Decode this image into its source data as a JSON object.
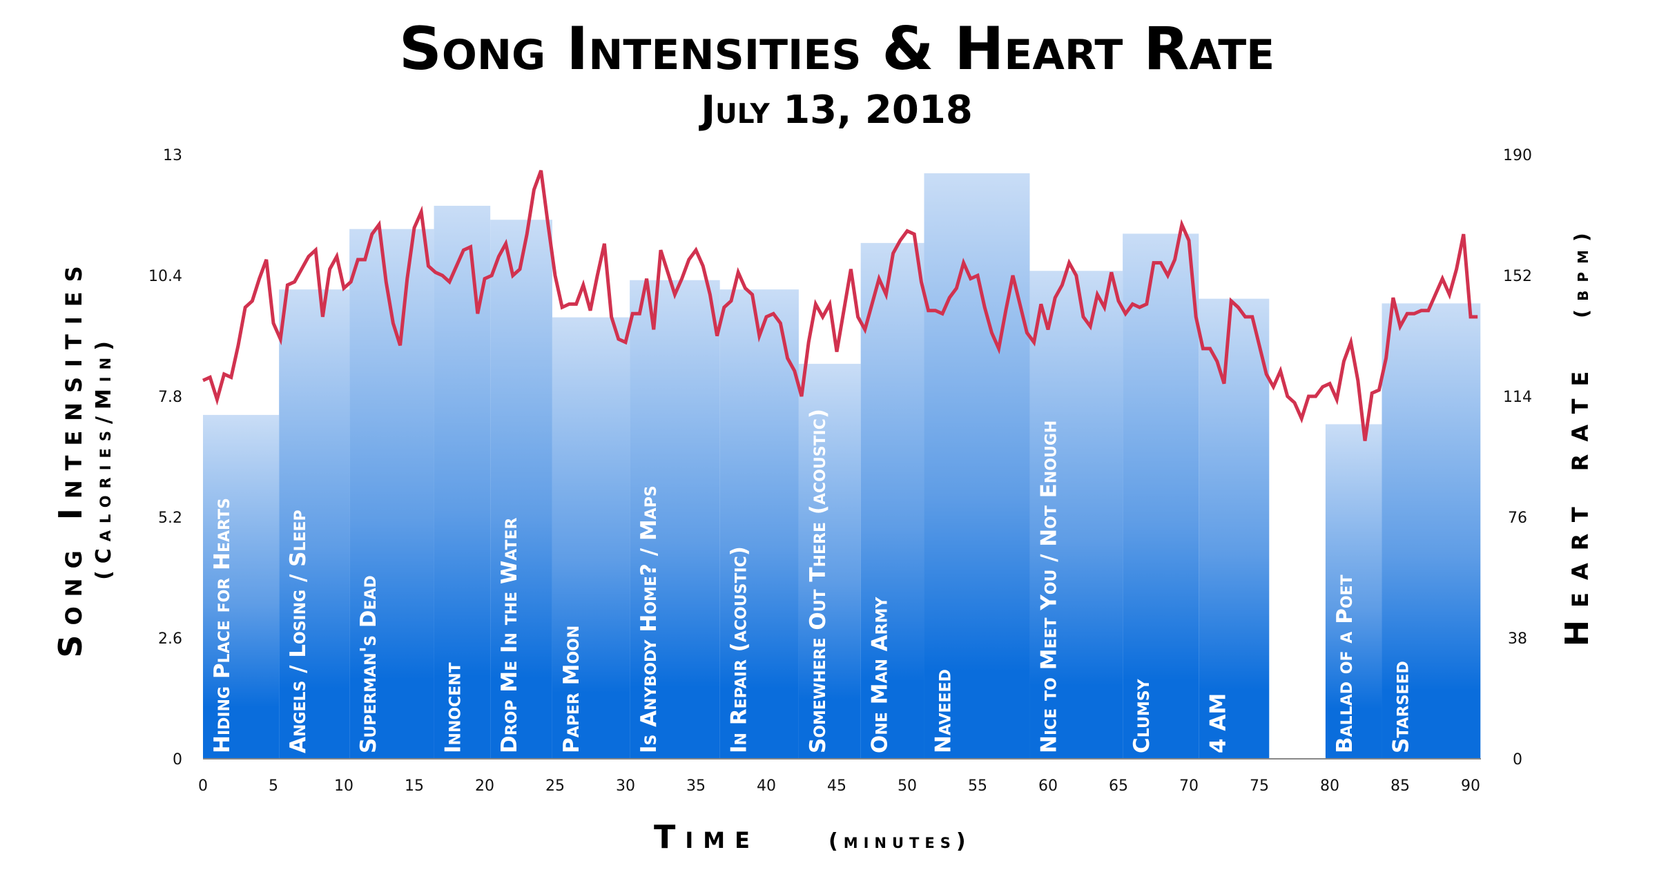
{
  "chart_data": {
    "type": "bar+line",
    "title": "Song Intensities & Heart Rate",
    "subtitle": "July 13, 2018",
    "xlabel": "Time",
    "xlabel_unit": "(minutes)",
    "ylabel_left": "Song Intensities",
    "ylabel_left_unit": "(Calories/Min)",
    "ylabel_right": "Heart rate",
    "ylabel_right_unit": "(bpm)",
    "xlim": [
      0,
      90
    ],
    "ylim_left": [
      0,
      13
    ],
    "ylim_right": [
      0,
      190
    ],
    "x_ticks": [
      "0",
      "5",
      "10",
      "15",
      "20",
      "25",
      "30",
      "35",
      "40",
      "45",
      "50",
      "55",
      "60",
      "65",
      "70",
      "75",
      "80",
      "85",
      "90"
    ],
    "y_left_ticks": [
      "0",
      "2.6",
      "5.2",
      "7.8",
      "10.4",
      "13"
    ],
    "y_right_ticks": [
      "0",
      "38",
      "76",
      "114",
      "152",
      "190"
    ],
    "grid": false,
    "colors": {
      "bar_top": "#c9ddf6",
      "bar_bottom": "#0a6ddc",
      "line": "#d1324f"
    },
    "songs": [
      {
        "name": "Hiding Place for Hearts",
        "start": 0,
        "end": 5.4,
        "intensity": 7.4
      },
      {
        "name": "Angels / Losing / Sleep",
        "start": 5.4,
        "end": 10.4,
        "intensity": 10.1
      },
      {
        "name": "Superman's Dead",
        "start": 10.4,
        "end": 16.4,
        "intensity": 11.4
      },
      {
        "name": "Innocent",
        "start": 16.4,
        "end": 20.4,
        "intensity": 11.9
      },
      {
        "name": "Drop Me In the Water",
        "start": 20.4,
        "end": 24.8,
        "intensity": 11.6
      },
      {
        "name": "Paper Moon",
        "start": 24.8,
        "end": 30.3,
        "intensity": 9.5
      },
      {
        "name": "Is Anybody Home? / Maps",
        "start": 30.3,
        "end": 36.7,
        "intensity": 10.3
      },
      {
        "name": "In Repair (acoustic)",
        "start": 36.7,
        "end": 42.3,
        "intensity": 10.1
      },
      {
        "name": "Somewhere Out There (acoustic)",
        "start": 42.3,
        "end": 46.7,
        "intensity": 8.5
      },
      {
        "name": "One Man Army",
        "start": 46.7,
        "end": 51.2,
        "intensity": 11.1
      },
      {
        "name": "Naveeed",
        "start": 51.2,
        "end": 58.7,
        "intensity": 12.6
      },
      {
        "name": "Nice to Meet You / Not Enough",
        "start": 58.7,
        "end": 65.3,
        "intensity": 10.5
      },
      {
        "name": "Clumsy",
        "start": 65.3,
        "end": 70.7,
        "intensity": 11.3
      },
      {
        "name": "4 AM",
        "start": 70.7,
        "end": 75.7,
        "intensity": 9.9
      },
      {
        "name": "Ballad of a Poet",
        "start": 79.7,
        "end": 83.7,
        "intensity": 7.2
      },
      {
        "name": "Starseed",
        "start": 83.7,
        "end": 90.7,
        "intensity": 9.8
      }
    ],
    "heart_rate": [
      [
        0,
        119
      ],
      [
        0.5,
        120
      ],
      [
        1,
        113
      ],
      [
        1.5,
        121
      ],
      [
        2,
        120
      ],
      [
        2.5,
        130
      ],
      [
        3,
        142
      ],
      [
        3.5,
        144
      ],
      [
        4,
        151
      ],
      [
        4.5,
        157
      ],
      [
        5,
        137
      ],
      [
        5.5,
        132
      ],
      [
        6,
        149
      ],
      [
        6.5,
        150
      ],
      [
        7,
        154
      ],
      [
        7.5,
        158
      ],
      [
        8,
        160
      ],
      [
        8.5,
        139
      ],
      [
        9,
        154
      ],
      [
        9.5,
        158
      ],
      [
        10,
        148
      ],
      [
        10.5,
        150
      ],
      [
        11,
        157
      ],
      [
        11.5,
        157
      ],
      [
        12,
        165
      ],
      [
        12.5,
        168
      ],
      [
        13,
        150
      ],
      [
        13.5,
        137
      ],
      [
        14,
        130
      ],
      [
        14.5,
        151
      ],
      [
        15,
        167
      ],
      [
        15.5,
        172
      ],
      [
        16,
        155
      ],
      [
        16.5,
        153
      ],
      [
        17,
        152
      ],
      [
        17.5,
        150
      ],
      [
        18,
        155
      ],
      [
        18.5,
        160
      ],
      [
        19,
        161
      ],
      [
        19.5,
        140
      ],
      [
        20,
        151
      ],
      [
        20.5,
        152
      ],
      [
        21,
        158
      ],
      [
        21.5,
        162
      ],
      [
        22,
        152
      ],
      [
        22.5,
        154
      ],
      [
        23,
        165
      ],
      [
        23.5,
        179
      ],
      [
        24,
        185
      ],
      [
        24.5,
        168
      ],
      [
        25,
        152
      ],
      [
        25.5,
        142
      ],
      [
        26,
        143
      ],
      [
        26.5,
        143
      ],
      [
        27,
        149
      ],
      [
        27.5,
        141
      ],
      [
        28,
        152
      ],
      [
        28.5,
        162
      ],
      [
        29,
        139
      ],
      [
        29.5,
        132
      ],
      [
        30,
        131
      ],
      [
        30.5,
        140
      ],
      [
        31,
        140
      ],
      [
        31.5,
        151
      ],
      [
        32,
        135
      ],
      [
        32.5,
        160
      ],
      [
        33,
        153
      ],
      [
        33.5,
        146
      ],
      [
        34,
        151
      ],
      [
        34.5,
        157
      ],
      [
        35,
        160
      ],
      [
        35.5,
        155
      ],
      [
        36,
        146
      ],
      [
        36.5,
        133
      ],
      [
        37,
        142
      ],
      [
        37.5,
        144
      ],
      [
        38,
        153
      ],
      [
        38.5,
        148
      ],
      [
        39,
        146
      ],
      [
        39.5,
        133
      ],
      [
        40,
        139
      ],
      [
        40.5,
        140
      ],
      [
        41,
        137
      ],
      [
        41.5,
        126
      ],
      [
        42,
        122
      ],
      [
        42.5,
        114
      ],
      [
        43,
        131
      ],
      [
        43.5,
        143
      ],
      [
        44,
        139
      ],
      [
        44.5,
        143
      ],
      [
        45,
        128
      ],
      [
        45.5,
        141
      ],
      [
        46,
        154
      ],
      [
        46.5,
        139
      ],
      [
        47,
        135
      ],
      [
        47.5,
        143
      ],
      [
        48,
        151
      ],
      [
        48.5,
        146
      ],
      [
        49,
        159
      ],
      [
        49.5,
        163
      ],
      [
        50,
        166
      ],
      [
        50.5,
        165
      ],
      [
        51,
        150
      ],
      [
        51.5,
        141
      ],
      [
        52,
        141
      ],
      [
        52.5,
        140
      ],
      [
        53,
        145
      ],
      [
        53.5,
        148
      ],
      [
        54,
        156
      ],
      [
        54.5,
        151
      ],
      [
        55,
        152
      ],
      [
        55.5,
        142
      ],
      [
        56,
        134
      ],
      [
        56.5,
        129
      ],
      [
        57,
        141
      ],
      [
        57.5,
        152
      ],
      [
        58,
        143
      ],
      [
        58.5,
        134
      ],
      [
        59,
        131
      ],
      [
        59.5,
        143
      ],
      [
        60,
        135
      ],
      [
        60.5,
        145
      ],
      [
        61,
        149
      ],
      [
        61.5,
        156
      ],
      [
        62,
        152
      ],
      [
        62.5,
        139
      ],
      [
        63,
        136
      ],
      [
        63.5,
        146
      ],
      [
        64,
        142
      ],
      [
        64.5,
        153
      ],
      [
        65,
        144
      ],
      [
        65.5,
        140
      ],
      [
        66,
        143
      ],
      [
        66.5,
        142
      ],
      [
        67,
        143
      ],
      [
        67.5,
        156
      ],
      [
        68,
        156
      ],
      [
        68.5,
        152
      ],
      [
        69,
        157
      ],
      [
        69.5,
        168
      ],
      [
        70,
        163
      ],
      [
        70.5,
        139
      ],
      [
        71,
        129
      ],
      [
        71.5,
        129
      ],
      [
        72,
        125
      ],
      [
        72.5,
        118
      ],
      [
        73,
        144
      ],
      [
        73.5,
        142
      ],
      [
        74,
        139
      ],
      [
        74.5,
        139
      ],
      [
        75,
        130
      ],
      [
        75.5,
        121
      ],
      [
        76,
        117
      ],
      [
        76.5,
        122
      ],
      [
        77,
        114
      ],
      [
        77.5,
        112
      ],
      [
        78,
        107
      ],
      [
        78.5,
        114
      ],
      [
        79,
        114
      ],
      [
        79.5,
        117
      ],
      [
        80,
        118
      ],
      [
        80.5,
        113
      ],
      [
        81,
        125
      ],
      [
        81.5,
        131
      ],
      [
        82,
        119
      ],
      [
        82.5,
        100
      ],
      [
        83,
        115
      ],
      [
        83.5,
        116
      ],
      [
        84,
        126
      ],
      [
        84.5,
        145
      ],
      [
        85,
        136
      ],
      [
        85.5,
        140
      ],
      [
        86,
        140
      ],
      [
        86.5,
        141
      ],
      [
        87,
        141
      ],
      [
        87.5,
        146
      ],
      [
        88,
        151
      ],
      [
        88.5,
        146
      ],
      [
        89,
        154
      ],
      [
        89.5,
        165
      ],
      [
        90,
        139
      ],
      [
        90.5,
        139
      ]
    ]
  }
}
